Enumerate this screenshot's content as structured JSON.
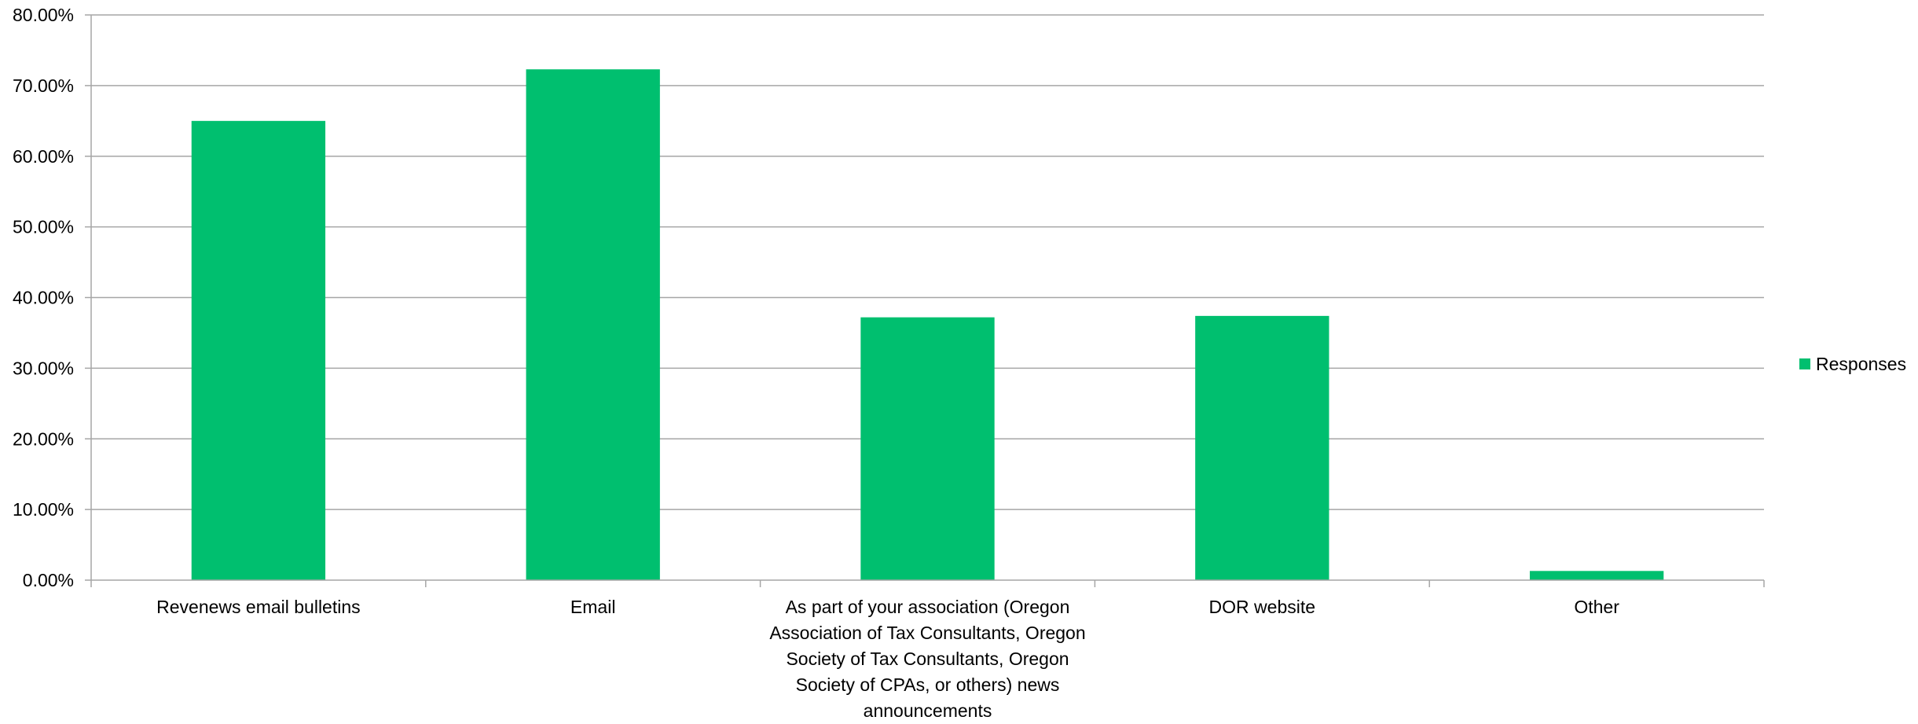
{
  "chart_data": {
    "type": "bar",
    "title": "",
    "xlabel": "",
    "ylabel": "",
    "categories": [
      "Revenews email bulletins",
      "Email",
      "As part of your association (Oregon Association of Tax Consultants, Oregon Society of Tax Consultants, Oregon Society of CPAs, or others) news announcements",
      "DOR website",
      "Other"
    ],
    "series": [
      {
        "name": "Responses",
        "color": "#00BF6F",
        "values": [
          65.0,
          72.3,
          37.2,
          37.4,
          1.3
        ]
      }
    ],
    "ylim": [
      0,
      80
    ],
    "yticks": [
      0,
      10,
      20,
      30,
      40,
      50,
      60,
      70,
      80
    ],
    "ytick_labels": [
      "0.00%",
      "10.00%",
      "20.00%",
      "30.00%",
      "40.00%",
      "50.00%",
      "60.00%",
      "70.00%",
      "80.00%"
    ],
    "grid": true,
    "legend_position": "right"
  }
}
